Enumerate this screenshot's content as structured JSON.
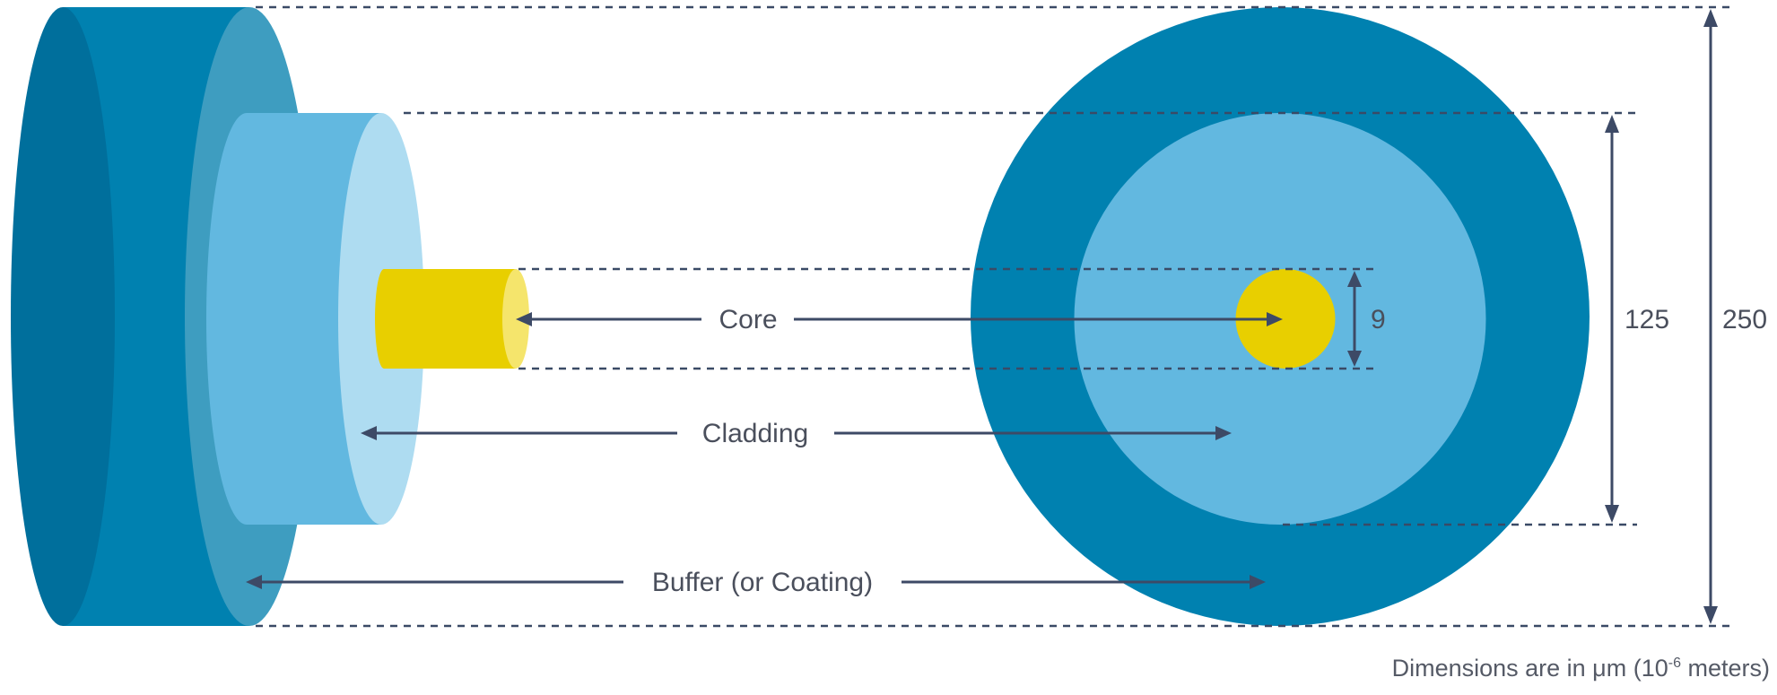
{
  "labels": {
    "core": "Core",
    "cladding": "Cladding",
    "buffer": "Buffer (or Coating)"
  },
  "dimensions": {
    "core": "9",
    "cladding": "125",
    "buffer": "250"
  },
  "note": {
    "prefix": "Dimensions are in μm (10",
    "exponent": "-6",
    "suffix": " meters)"
  },
  "colors": {
    "buffer": "#0081b0",
    "buffer_dark": "#006f9c",
    "buffer_face": "#3e9dc0",
    "cladding": "#62b8e0",
    "cladding_face": "#aedcf1",
    "core": "#e8cf00",
    "core_face": "#f5e56c",
    "lines": "#3d4a66"
  }
}
